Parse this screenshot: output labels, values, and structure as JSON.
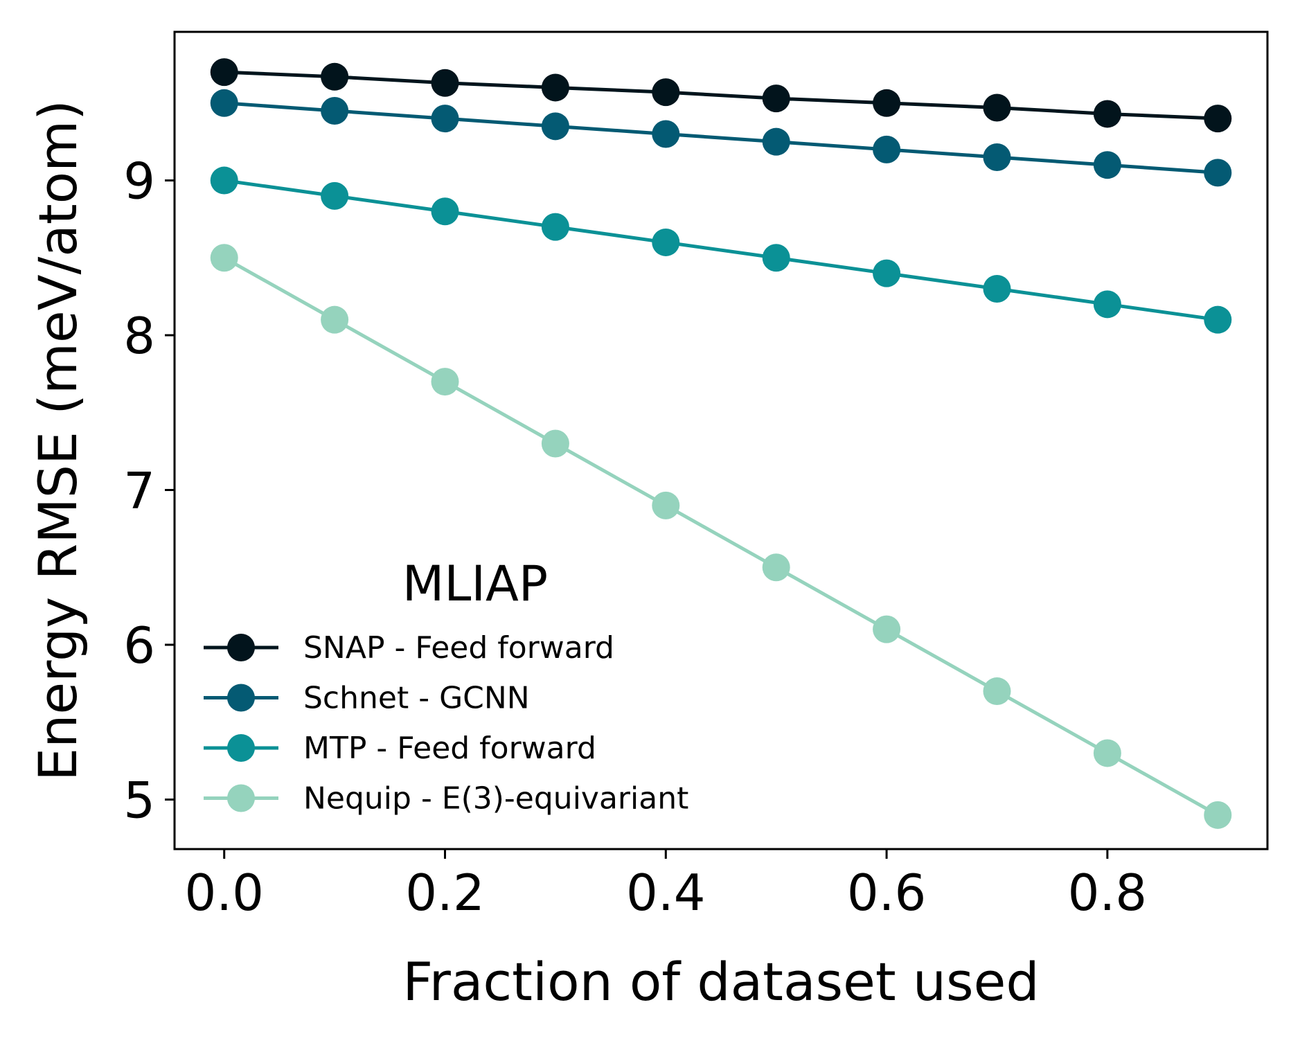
{
  "chart_data": {
    "type": "line",
    "title": "",
    "xlabel": "Fraction of dataset used",
    "ylabel": "Energy RMSE (meV/atom)",
    "x": [
      0.0,
      0.1,
      0.2,
      0.3,
      0.4,
      0.5,
      0.6,
      0.7,
      0.8,
      0.9
    ],
    "xlim": [
      -0.045,
      0.945
    ],
    "ylim": [
      4.68,
      9.96
    ],
    "xticks": [
      0.0,
      0.2,
      0.4,
      0.6,
      0.8
    ],
    "xtick_labels": [
      "0.0",
      "0.2",
      "0.4",
      "0.6",
      "0.8"
    ],
    "yticks": [
      5,
      6,
      7,
      8,
      9
    ],
    "ytick_labels": [
      "5",
      "6",
      "7",
      "8",
      "9"
    ],
    "grid": false,
    "legend": {
      "title": "MLIAP",
      "placement": "lower-left"
    },
    "series": [
      {
        "name": "SNAP - Feed forward",
        "color": "#02141c",
        "marker": "circle",
        "values": [
          9.7,
          9.67,
          9.63,
          9.6,
          9.57,
          9.53,
          9.5,
          9.47,
          9.43,
          9.4
        ]
      },
      {
        "name": "Schnet - GCNN",
        "color": "#045a73",
        "marker": "circle",
        "values": [
          9.5,
          9.45,
          9.4,
          9.35,
          9.3,
          9.25,
          9.2,
          9.15,
          9.1,
          9.05
        ]
      },
      {
        "name": "MTP - Feed forward",
        "color": "#0b9196",
        "marker": "circle",
        "values": [
          9.0,
          8.9,
          8.8,
          8.7,
          8.6,
          8.5,
          8.4,
          8.3,
          8.2,
          8.1
        ]
      },
      {
        "name": "Nequip - E(3)-equivariant",
        "color": "#95d3bd",
        "marker": "circle",
        "values": [
          8.5,
          8.1,
          7.7,
          7.3,
          6.9,
          6.5,
          6.1,
          5.7,
          5.3,
          4.9
        ]
      }
    ]
  }
}
